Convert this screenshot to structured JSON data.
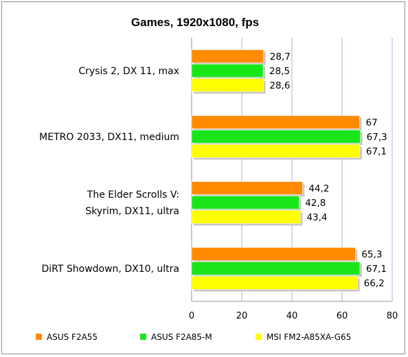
{
  "chart_data": {
    "type": "bar",
    "orientation": "horizontal",
    "title": "Games, 1920x1080, fps",
    "categories": [
      [
        "Crysis 2, DX 11, max"
      ],
      [
        "METRO 2033, DX11, medium"
      ],
      [
        "The Elder Scrolls V:",
        "Skyrim, DX11, ultra"
      ],
      [
        "DiRT Showdown, DX10, ultra"
      ]
    ],
    "series": [
      {
        "name": "ASUS F2A55",
        "color": "#ff8c00",
        "values": [
          28.7,
          67,
          44.2,
          65.3
        ],
        "labels": [
          "28,7",
          "67",
          "44,2",
          "65,3"
        ]
      },
      {
        "name": "ASUS F2A85-M",
        "color": "#19e619",
        "values": [
          28.5,
          67.3,
          42.8,
          67.1
        ],
        "labels": [
          "28,5",
          "67,3",
          "42,8",
          "67,1"
        ]
      },
      {
        "name": "MSI FM2-A85XA-G65",
        "color": "#ffff00",
        "values": [
          28.6,
          67.1,
          43.4,
          66.2
        ],
        "labels": [
          "28,6",
          "67,1",
          "43,4",
          "66,2"
        ]
      }
    ],
    "xlim": [
      0,
      80
    ],
    "xticks": [
      "0",
      "20",
      "40",
      "60",
      "80"
    ],
    "grid": true,
    "legend_position": "bottom"
  }
}
